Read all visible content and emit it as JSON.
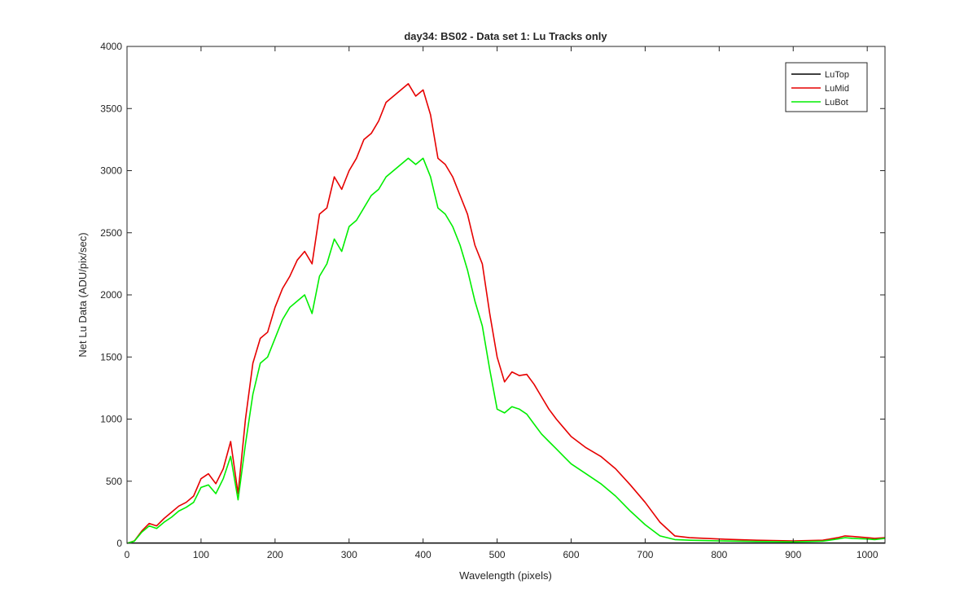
{
  "chart_data": {
    "type": "line",
    "title": "day34: BS02 - Data set 1: Lu Tracks only",
    "xlabel": "Wavelength (pixels)",
    "ylabel": "Net Lu Data (ADU/pix/sec)",
    "xlim": [
      0,
      1024
    ],
    "ylim": [
      0,
      4000
    ],
    "xticks": [
      "0",
      "100",
      "200",
      "300",
      "400",
      "500",
      "600",
      "700",
      "800",
      "900",
      "1000"
    ],
    "yticks": [
      "0",
      "500",
      "1000",
      "1500",
      "2000",
      "2500",
      "3000",
      "3500",
      "4000"
    ],
    "grid": false,
    "legend_position": "top-right",
    "x": [
      0,
      10,
      20,
      30,
      40,
      50,
      60,
      70,
      80,
      90,
      100,
      110,
      120,
      130,
      140,
      150,
      160,
      170,
      180,
      190,
      200,
      210,
      220,
      230,
      240,
      250,
      260,
      270,
      280,
      290,
      300,
      310,
      320,
      330,
      340,
      350,
      360,
      370,
      380,
      390,
      400,
      410,
      420,
      430,
      440,
      450,
      460,
      470,
      480,
      490,
      500,
      510,
      520,
      530,
      540,
      550,
      560,
      570,
      580,
      590,
      600,
      620,
      640,
      660,
      680,
      700,
      720,
      740,
      760,
      800,
      850,
      900,
      940,
      960,
      970,
      980,
      1000,
      1010,
      1024
    ],
    "series": [
      {
        "name": "LuTop",
        "color": "#000000",
        "values": [
          2,
          2,
          2,
          2,
          2,
          2,
          2,
          2,
          2,
          2,
          2,
          2,
          2,
          2,
          2,
          2,
          2,
          2,
          2,
          2,
          2,
          2,
          2,
          2,
          2,
          2,
          2,
          2,
          2,
          2,
          2,
          2,
          2,
          2,
          2,
          2,
          2,
          2,
          2,
          2,
          2,
          2,
          2,
          2,
          2,
          2,
          2,
          2,
          2,
          2,
          2,
          2,
          2,
          2,
          2,
          2,
          2,
          2,
          2,
          2,
          2,
          2,
          2,
          2,
          2,
          2,
          2,
          2,
          2,
          2,
          2,
          2,
          2,
          2,
          2,
          2,
          2,
          2,
          2
        ]
      },
      {
        "name": "LuMid",
        "color": "#e60000",
        "values": [
          0,
          20,
          100,
          160,
          140,
          200,
          250,
          300,
          330,
          380,
          520,
          560,
          480,
          600,
          820,
          400,
          1000,
          1450,
          1650,
          1700,
          1900,
          2050,
          2150,
          2280,
          2350,
          2250,
          2650,
          2700,
          2950,
          2850,
          3000,
          3100,
          3250,
          3300,
          3400,
          3550,
          3600,
          3650,
          3700,
          3600,
          3650,
          3450,
          3100,
          3050,
          2950,
          2800,
          2650,
          2400,
          2250,
          1850,
          1500,
          1300,
          1380,
          1350,
          1360,
          1280,
          1180,
          1080,
          1000,
          930,
          860,
          770,
          700,
          600,
          470,
          330,
          170,
          60,
          45,
          35,
          25,
          20,
          25,
          45,
          60,
          55,
          45,
          40,
          45
        ]
      },
      {
        "name": "LuBot",
        "color": "#00ee00",
        "values": [
          0,
          18,
          90,
          140,
          120,
          170,
          210,
          260,
          290,
          330,
          450,
          470,
          400,
          520,
          700,
          350,
          800,
          1200,
          1450,
          1500,
          1650,
          1800,
          1900,
          1950,
          2000,
          1850,
          2150,
          2250,
          2450,
          2350,
          2550,
          2600,
          2700,
          2800,
          2850,
          2950,
          3000,
          3050,
          3100,
          3050,
          3100,
          2950,
          2700,
          2650,
          2550,
          2400,
          2200,
          1950,
          1750,
          1400,
          1080,
          1050,
          1100,
          1080,
          1040,
          960,
          880,
          820,
          760,
          700,
          640,
          560,
          480,
          380,
          260,
          150,
          60,
          30,
          25,
          20,
          15,
          12,
          18,
          35,
          45,
          40,
          35,
          30,
          40
        ]
      }
    ]
  }
}
